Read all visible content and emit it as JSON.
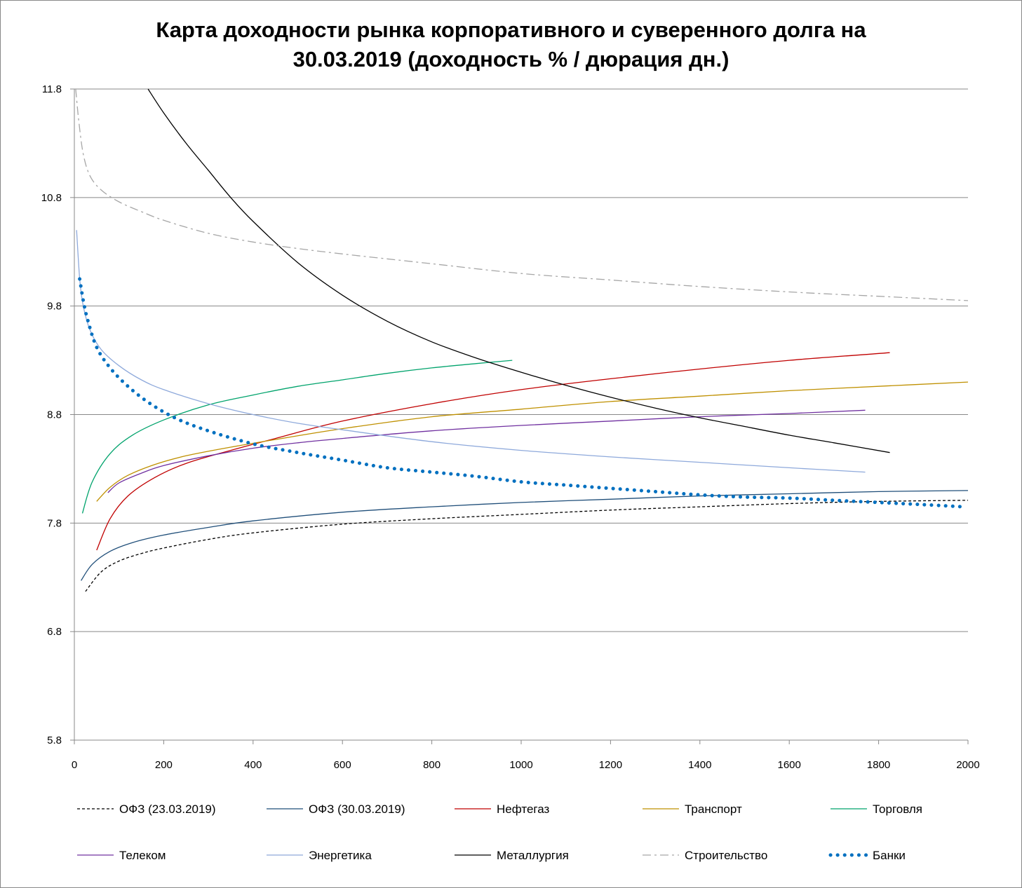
{
  "chart_data": {
    "type": "line",
    "title": "Карта доходности рынка корпоративного и суверенного долга на\n30.03.2019 (доходность % / дюрация дн.)",
    "xlabel": "",
    "ylabel": "",
    "xlim": [
      0,
      2000
    ],
    "ylim": [
      5.8,
      11.8
    ],
    "xticks": [
      "0",
      "200",
      "400",
      "600",
      "800",
      "1000",
      "1200",
      "1400",
      "1600",
      "1800",
      "2000"
    ],
    "yticks": [
      "5.8",
      "6.8",
      "7.8",
      "8.8",
      "9.8",
      "10.8",
      "11.8"
    ],
    "grid": "horizontal",
    "legend_position": "bottom",
    "series": [
      {
        "name": "ОФЗ (23.03.2019)",
        "color": "#000000",
        "style": "dashed",
        "x": [
          25,
          60,
          100,
          150,
          200,
          300,
          400,
          600,
          800,
          1000,
          1200,
          1400,
          1600,
          1800,
          2000
        ],
        "y": [
          7.17,
          7.35,
          7.45,
          7.52,
          7.57,
          7.65,
          7.71,
          7.79,
          7.84,
          7.88,
          7.92,
          7.95,
          7.98,
          8.0,
          8.01
        ]
      },
      {
        "name": "ОФЗ (30.03.2019)",
        "color": "#1f4e79",
        "style": "solid",
        "x": [
          15,
          40,
          80,
          130,
          200,
          300,
          400,
          600,
          800,
          1000,
          1200,
          1400,
          1600,
          1800,
          2000
        ],
        "y": [
          7.27,
          7.42,
          7.54,
          7.62,
          7.69,
          7.76,
          7.82,
          7.9,
          7.95,
          7.99,
          8.02,
          8.05,
          8.07,
          8.09,
          8.1
        ]
      },
      {
        "name": "Нефтегаз",
        "color": "#c00000",
        "style": "solid",
        "x": [
          50,
          80,
          120,
          180,
          250,
          350,
          450,
          600,
          800,
          1000,
          1200,
          1400,
          1600,
          1825
        ],
        "y": [
          7.55,
          7.84,
          8.05,
          8.22,
          8.35,
          8.47,
          8.58,
          8.74,
          8.9,
          9.03,
          9.13,
          9.22,
          9.3,
          9.37
        ]
      },
      {
        "name": "Транспорт",
        "color": "#bf9000",
        "style": "solid",
        "x": [
          50,
          80,
          120,
          180,
          250,
          350,
          450,
          600,
          800,
          1000,
          1200,
          1400,
          1600,
          1800,
          2000
        ],
        "y": [
          8.0,
          8.13,
          8.24,
          8.34,
          8.42,
          8.5,
          8.57,
          8.67,
          8.78,
          8.85,
          8.92,
          8.97,
          9.02,
          9.06,
          9.1
        ]
      },
      {
        "name": "Торговля",
        "color": "#00a36c",
        "style": "solid",
        "x": [
          18,
          40,
          80,
          130,
          200,
          300,
          400,
          500,
          600,
          700,
          800,
          900,
          980
        ],
        "y": [
          7.89,
          8.18,
          8.44,
          8.61,
          8.75,
          8.89,
          8.98,
          9.06,
          9.12,
          9.18,
          9.23,
          9.27,
          9.3
        ]
      },
      {
        "name": "Телеком",
        "color": "#7030a0",
        "style": "solid",
        "x": [
          75,
          100,
          150,
          200,
          300,
          400,
          500,
          600,
          800,
          1000,
          1200,
          1400,
          1600,
          1770
        ],
        "y": [
          8.08,
          8.17,
          8.26,
          8.33,
          8.42,
          8.49,
          8.54,
          8.58,
          8.65,
          8.7,
          8.74,
          8.78,
          8.81,
          8.84
        ]
      },
      {
        "name": "Энергетика",
        "color": "#8ea9db",
        "style": "solid",
        "x": [
          5,
          12,
          20,
          35,
          60,
          100,
          150,
          200,
          300,
          400,
          500,
          600,
          800,
          1000,
          1200,
          1400,
          1600,
          1770
        ],
        "y": [
          10.5,
          10.05,
          9.8,
          9.58,
          9.4,
          9.25,
          9.12,
          9.03,
          8.9,
          8.8,
          8.72,
          8.66,
          8.55,
          8.47,
          8.41,
          8.36,
          8.31,
          8.27
        ]
      },
      {
        "name": "Металлургия",
        "color": "#000000",
        "style": "solid",
        "x": [
          165,
          200,
          250,
          300,
          350,
          400,
          500,
          600,
          700,
          800,
          900,
          1000,
          1100,
          1200,
          1300,
          1400,
          1500,
          1600,
          1700,
          1825
        ],
        "y": [
          11.8,
          11.58,
          11.3,
          11.05,
          10.8,
          10.58,
          10.2,
          9.9,
          9.66,
          9.47,
          9.32,
          9.19,
          9.07,
          8.96,
          8.86,
          8.77,
          8.69,
          8.61,
          8.54,
          8.45
        ]
      },
      {
        "name": "Строительство",
        "color": "#a6a6a6",
        "style": "dashdot",
        "x": [
          3,
          10,
          20,
          35,
          60,
          100,
          150,
          200,
          300,
          400,
          500,
          600,
          800,
          1000,
          1200,
          1400,
          1600,
          1800,
          2000
        ],
        "y": [
          11.8,
          11.5,
          11.2,
          11.0,
          10.87,
          10.76,
          10.67,
          10.59,
          10.47,
          10.39,
          10.33,
          10.28,
          10.19,
          10.1,
          10.04,
          9.98,
          9.93,
          9.89,
          9.85
        ]
      },
      {
        "name": "Банки",
        "color": "#0070c0",
        "style": "dotted",
        "x": [
          12,
          20,
          30,
          50,
          80,
          120,
          170,
          230,
          300,
          400,
          500,
          600,
          700,
          800,
          900,
          1000,
          1100,
          1200,
          1300,
          1400,
          1500,
          1600,
          1700,
          1800,
          1900,
          1990
        ],
        "y": [
          10.05,
          9.85,
          9.67,
          9.42,
          9.23,
          9.06,
          8.9,
          8.76,
          8.65,
          8.53,
          8.45,
          8.38,
          8.31,
          8.27,
          8.23,
          8.18,
          8.15,
          8.12,
          8.09,
          8.06,
          8.04,
          8.03,
          8.01,
          7.99,
          7.97,
          7.95
        ]
      }
    ]
  }
}
